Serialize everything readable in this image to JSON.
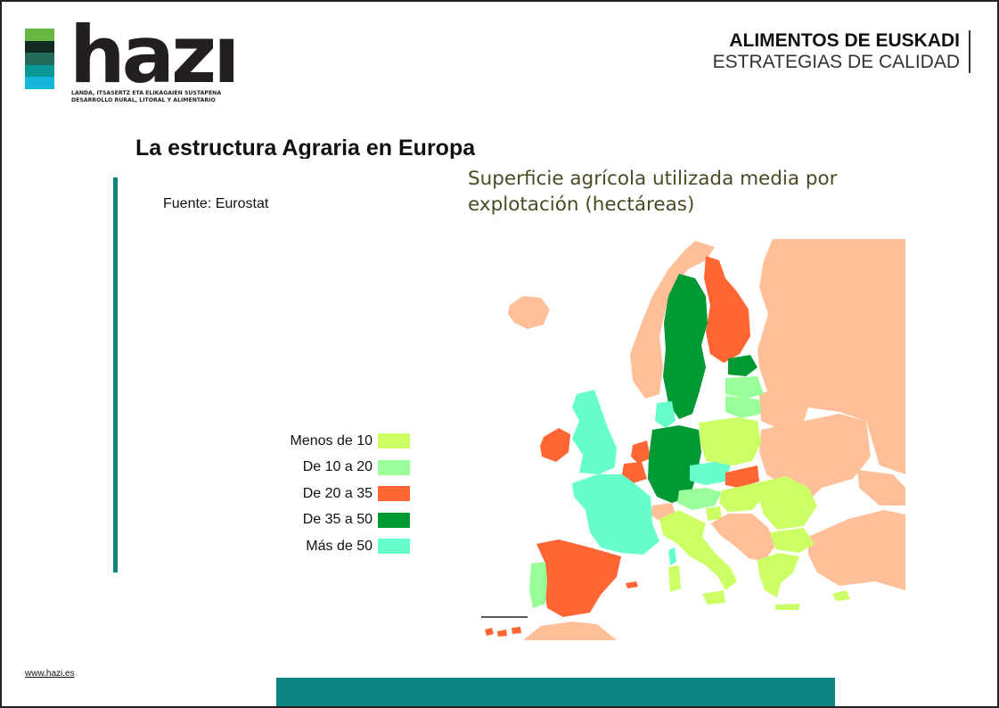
{
  "brand": {
    "wordmark": "hazı",
    "tagline_line1": "LANDA, ITSASERTZ ETA ELIKAGAIEN SUSTAPENA",
    "tagline_line2": "DESARROLLO RURAL, LITORAL Y ALIMENTARIO",
    "stripe_colors": [
      "#69b843",
      "#102a22",
      "#236a58",
      "#0c9797",
      "#14b6da"
    ]
  },
  "header": {
    "org_name": "ALIMENTOS DE EUSKADI",
    "subtitle": "ESTRATEGIAS DE CALIDAD"
  },
  "slide": {
    "title": "La estructura Agraria en Europa",
    "source": "Fuente: Eurostat",
    "map_title_line1": "Superficie agrícola utilizada media por",
    "map_title_line2": "explotación (hectáreas)"
  },
  "legend": [
    {
      "label": "Menos de 10",
      "color": "#ccff66"
    },
    {
      "label": "De 10 a 20",
      "color": "#99ff99"
    },
    {
      "label": "De 20 a 35",
      "color": "#ff6633"
    },
    {
      "label": "De 35 a 50",
      "color": "#009933"
    },
    {
      "label": "Más de 50",
      "color": "#66ffcc"
    }
  ],
  "map": {
    "non_eu_color": "#ffbf99",
    "sea_color": "#ffffff"
  },
  "footer": {
    "url": "www.hazi.es",
    "bar_color": "#0e8383"
  }
}
